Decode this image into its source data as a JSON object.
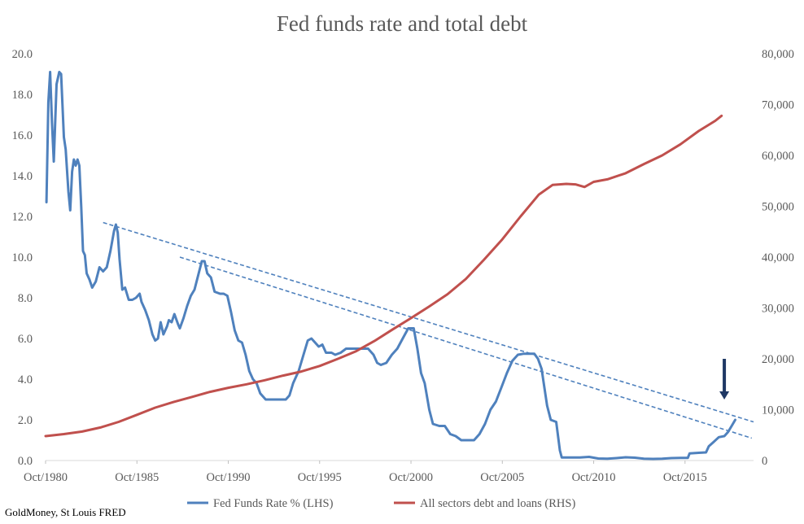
{
  "chart_data": {
    "type": "line",
    "title": "Fed funds rate and total debt",
    "source": "GoldMoney, St Louis FRED",
    "x_axis": {
      "range": [
        1980.75,
        2019.5
      ],
      "ticks": [
        {
          "value": 1980.75,
          "label": "Oct/1980"
        },
        {
          "value": 1985.75,
          "label": "Oct/1985"
        },
        {
          "value": 1990.75,
          "label": "Oct/1990"
        },
        {
          "value": 1995.75,
          "label": "Oct/1995"
        },
        {
          "value": 2000.75,
          "label": "Oct/2000"
        },
        {
          "value": 2005.75,
          "label": "Oct/2005"
        },
        {
          "value": 2010.75,
          "label": "Oct/2010"
        },
        {
          "value": 2015.75,
          "label": "Oct/2015"
        }
      ]
    },
    "y_left": {
      "range": [
        0,
        20
      ],
      "ticks": [
        {
          "value": 0,
          "label": "0.0"
        },
        {
          "value": 2,
          "label": "2.0"
        },
        {
          "value": 4,
          "label": "4.0"
        },
        {
          "value": 6,
          "label": "6.0"
        },
        {
          "value": 8,
          "label": "8.0"
        },
        {
          "value": 10,
          "label": "10.0"
        },
        {
          "value": 12,
          "label": "12.0"
        },
        {
          "value": 14,
          "label": "14.0"
        },
        {
          "value": 16,
          "label": "16.0"
        },
        {
          "value": 18,
          "label": "18.0"
        },
        {
          "value": 20,
          "label": "20.0"
        }
      ]
    },
    "y_right": {
      "range": [
        0,
        80000
      ],
      "ticks": [
        {
          "value": 0,
          "label": "0"
        },
        {
          "value": 10000,
          "label": "10,000"
        },
        {
          "value": 20000,
          "label": "20,000"
        },
        {
          "value": 30000,
          "label": "30,000"
        },
        {
          "value": 40000,
          "label": "40,000"
        },
        {
          "value": 50000,
          "label": "50,000"
        },
        {
          "value": 60000,
          "label": "60,000"
        },
        {
          "value": 70000,
          "label": "70,000"
        },
        {
          "value": 80000,
          "label": "80,000"
        }
      ]
    },
    "series": [
      {
        "name": "Fed Funds Rate % (LHS)",
        "axis": "left",
        "color": "#4F81BD",
        "points": [
          [
            1980.8,
            12.7
          ],
          [
            1980.9,
            17.6
          ],
          [
            1981.0,
            19.1
          ],
          [
            1981.1,
            16.6
          ],
          [
            1981.2,
            14.7
          ],
          [
            1981.35,
            18.5
          ],
          [
            1981.5,
            19.1
          ],
          [
            1981.6,
            19.0
          ],
          [
            1981.75,
            15.9
          ],
          [
            1981.85,
            15.3
          ],
          [
            1982.0,
            13.2
          ],
          [
            1982.1,
            12.3
          ],
          [
            1982.2,
            14.2
          ],
          [
            1982.3,
            14.8
          ],
          [
            1982.4,
            14.5
          ],
          [
            1982.5,
            14.8
          ],
          [
            1982.6,
            14.5
          ],
          [
            1982.7,
            12.5
          ],
          [
            1982.8,
            10.3
          ],
          [
            1982.9,
            10.1
          ],
          [
            1983.0,
            9.2
          ],
          [
            1983.15,
            8.9
          ],
          [
            1983.3,
            8.5
          ],
          [
            1983.5,
            8.8
          ],
          [
            1983.7,
            9.5
          ],
          [
            1983.9,
            9.3
          ],
          [
            1984.1,
            9.5
          ],
          [
            1984.3,
            10.3
          ],
          [
            1984.5,
            11.3
          ],
          [
            1984.6,
            11.6
          ],
          [
            1984.7,
            11.2
          ],
          [
            1984.8,
            9.9
          ],
          [
            1984.95,
            8.4
          ],
          [
            1985.1,
            8.5
          ],
          [
            1985.3,
            7.9
          ],
          [
            1985.5,
            7.9
          ],
          [
            1985.7,
            8.0
          ],
          [
            1985.9,
            8.2
          ],
          [
            1986.0,
            7.8
          ],
          [
            1986.2,
            7.4
          ],
          [
            1986.4,
            6.9
          ],
          [
            1986.6,
            6.2
          ],
          [
            1986.75,
            5.9
          ],
          [
            1986.9,
            6.0
          ],
          [
            1987.05,
            6.8
          ],
          [
            1987.2,
            6.2
          ],
          [
            1987.4,
            6.6
          ],
          [
            1987.5,
            6.9
          ],
          [
            1987.65,
            6.8
          ],
          [
            1987.8,
            7.2
          ],
          [
            1988.0,
            6.7
          ],
          [
            1988.1,
            6.5
          ],
          [
            1988.3,
            7.0
          ],
          [
            1988.5,
            7.6
          ],
          [
            1988.7,
            8.1
          ],
          [
            1988.9,
            8.4
          ],
          [
            1989.1,
            9.1
          ],
          [
            1989.3,
            9.8
          ],
          [
            1989.45,
            9.8
          ],
          [
            1989.6,
            9.2
          ],
          [
            1989.8,
            9.0
          ],
          [
            1990.0,
            8.3
          ],
          [
            1990.3,
            8.2
          ],
          [
            1990.5,
            8.2
          ],
          [
            1990.7,
            8.1
          ],
          [
            1990.9,
            7.3
          ],
          [
            1991.1,
            6.4
          ],
          [
            1991.3,
            5.9
          ],
          [
            1991.5,
            5.8
          ],
          [
            1991.7,
            5.2
          ],
          [
            1991.9,
            4.4
          ],
          [
            1992.1,
            4.0
          ],
          [
            1992.3,
            3.8
          ],
          [
            1992.5,
            3.3
          ],
          [
            1992.8,
            3.0
          ],
          [
            1993.0,
            3.0
          ],
          [
            1993.3,
            3.0
          ],
          [
            1993.6,
            3.0
          ],
          [
            1993.9,
            3.0
          ],
          [
            1994.1,
            3.2
          ],
          [
            1994.3,
            3.8
          ],
          [
            1994.6,
            4.4
          ],
          [
            1994.9,
            5.3
          ],
          [
            1995.1,
            5.9
          ],
          [
            1995.3,
            6.0
          ],
          [
            1995.5,
            5.8
          ],
          [
            1995.7,
            5.6
          ],
          [
            1995.9,
            5.7
          ],
          [
            1996.1,
            5.3
          ],
          [
            1996.4,
            5.3
          ],
          [
            1996.6,
            5.2
          ],
          [
            1996.9,
            5.3
          ],
          [
            1997.2,
            5.5
          ],
          [
            1997.5,
            5.5
          ],
          [
            1997.8,
            5.5
          ],
          [
            1998.1,
            5.5
          ],
          [
            1998.4,
            5.5
          ],
          [
            1998.7,
            5.2
          ],
          [
            1998.9,
            4.8
          ],
          [
            1999.1,
            4.7
          ],
          [
            1999.4,
            4.8
          ],
          [
            1999.7,
            5.2
          ],
          [
            2000.0,
            5.5
          ],
          [
            2000.3,
            6.0
          ],
          [
            2000.6,
            6.5
          ],
          [
            2000.9,
            6.5
          ],
          [
            2001.1,
            5.5
          ],
          [
            2001.3,
            4.3
          ],
          [
            2001.5,
            3.8
          ],
          [
            2001.75,
            2.5
          ],
          [
            2001.95,
            1.8
          ],
          [
            2002.3,
            1.7
          ],
          [
            2002.6,
            1.7
          ],
          [
            2002.9,
            1.3
          ],
          [
            2003.2,
            1.2
          ],
          [
            2003.5,
            1.0
          ],
          [
            2003.9,
            1.0
          ],
          [
            2004.2,
            1.0
          ],
          [
            2004.5,
            1.3
          ],
          [
            2004.8,
            1.8
          ],
          [
            2005.1,
            2.5
          ],
          [
            2005.4,
            2.9
          ],
          [
            2005.7,
            3.6
          ],
          [
            2006.0,
            4.3
          ],
          [
            2006.3,
            4.9
          ],
          [
            2006.6,
            5.2
          ],
          [
            2006.9,
            5.25
          ],
          [
            2007.2,
            5.25
          ],
          [
            2007.5,
            5.25
          ],
          [
            2007.7,
            5.0
          ],
          [
            2007.9,
            4.5
          ],
          [
            2008.0,
            3.9
          ],
          [
            2008.2,
            2.7
          ],
          [
            2008.4,
            2.0
          ],
          [
            2008.7,
            1.9
          ],
          [
            2008.9,
            0.5
          ],
          [
            2009.0,
            0.15
          ],
          [
            2009.5,
            0.15
          ],
          [
            2010.0,
            0.15
          ],
          [
            2010.5,
            0.18
          ],
          [
            2011.0,
            0.1
          ],
          [
            2011.5,
            0.09
          ],
          [
            2012.0,
            0.12
          ],
          [
            2012.5,
            0.16
          ],
          [
            2013.0,
            0.14
          ],
          [
            2013.5,
            0.09
          ],
          [
            2014.0,
            0.08
          ],
          [
            2014.5,
            0.09
          ],
          [
            2015.0,
            0.12
          ],
          [
            2015.5,
            0.13
          ],
          [
            2015.9,
            0.13
          ],
          [
            2016.0,
            0.35
          ],
          [
            2016.5,
            0.38
          ],
          [
            2016.9,
            0.4
          ],
          [
            2017.05,
            0.7
          ],
          [
            2017.3,
            0.9
          ],
          [
            2017.6,
            1.15
          ],
          [
            2017.9,
            1.2
          ],
          [
            2018.1,
            1.4
          ],
          [
            2018.3,
            1.7
          ],
          [
            2018.5,
            2.0
          ]
        ]
      },
      {
        "name": "All sectors debt and loans (RHS)",
        "axis": "right",
        "color": "#C0504D",
        "points": [
          [
            1980.75,
            4800
          ],
          [
            1981.75,
            5200
          ],
          [
            1982.75,
            5700
          ],
          [
            1983.75,
            6500
          ],
          [
            1984.75,
            7600
          ],
          [
            1985.75,
            9000
          ],
          [
            1986.75,
            10400
          ],
          [
            1987.75,
            11500
          ],
          [
            1988.75,
            12500
          ],
          [
            1989.75,
            13500
          ],
          [
            1990.75,
            14300
          ],
          [
            1991.75,
            15000
          ],
          [
            1992.75,
            15800
          ],
          [
            1993.75,
            16700
          ],
          [
            1994.75,
            17500
          ],
          [
            1995.75,
            18600
          ],
          [
            1996.75,
            20000
          ],
          [
            1997.75,
            21500
          ],
          [
            1998.75,
            23500
          ],
          [
            1999.75,
            25800
          ],
          [
            2000.75,
            28000
          ],
          [
            2001.75,
            30300
          ],
          [
            2002.75,
            32700
          ],
          [
            2003.75,
            35700
          ],
          [
            2004.75,
            39500
          ],
          [
            2005.75,
            43500
          ],
          [
            2006.75,
            48000
          ],
          [
            2007.75,
            52300
          ],
          [
            2008.5,
            54200
          ],
          [
            2009.25,
            54400
          ],
          [
            2009.75,
            54300
          ],
          [
            2010.25,
            53800
          ],
          [
            2010.75,
            54800
          ],
          [
            2011.5,
            55300
          ],
          [
            2012.5,
            56500
          ],
          [
            2013.5,
            58300
          ],
          [
            2014.5,
            60000
          ],
          [
            2015.5,
            62200
          ],
          [
            2016.5,
            64800
          ],
          [
            2017.4,
            66800
          ],
          [
            2017.75,
            67800
          ]
        ]
      }
    ],
    "trendlines": [
      {
        "from": [
          1983.9,
          11.7
        ],
        "to": [
          2019.5,
          1.9
        ],
        "style": "dashed",
        "color": "#4F81BD"
      },
      {
        "from": [
          1988.1,
          10.0
        ],
        "to": [
          2019.4,
          1.1
        ],
        "style": "dashed",
        "color": "#4F81BD"
      }
    ],
    "annotation": {
      "type": "down-arrow",
      "x": 2017.9,
      "from_y": 5.0,
      "to_y": 3.0,
      "color": "#1F3864"
    },
    "legend": {
      "position": "bottom-center"
    }
  }
}
